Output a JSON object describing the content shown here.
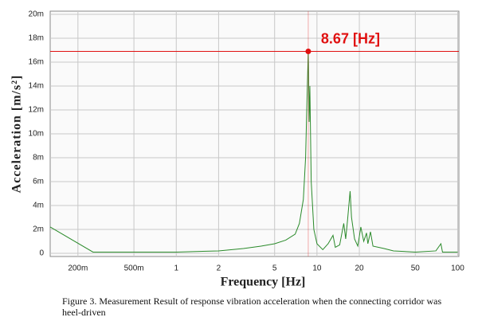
{
  "chart_data": {
    "type": "line",
    "xlabel": "Frequency [Hz]",
    "ylabel": "Acceleration [m/s²]",
    "caption": "Figure 3. Measurement Result of response vibration acceleration when the connecting corridor was heel-driven",
    "xscale": "log",
    "xlim": [
      0.127,
      102
    ],
    "xticks": [
      {
        "value": 0.2,
        "label": "200m"
      },
      {
        "value": 0.5,
        "label": "500m"
      },
      1,
      2,
      5,
      10,
      20,
      50,
      100
    ],
    "ylim": [
      -0.00027,
      0.02027
    ],
    "yticks": [
      0,
      {
        "value": 0.002,
        "label": "2m"
      },
      {
        "value": 0.004,
        "label": "4m"
      },
      {
        "value": 0.006,
        "label": "6m"
      },
      {
        "value": 0.008,
        "label": "8m"
      },
      {
        "value": 0.01,
        "label": "10m"
      },
      {
        "value": 0.012,
        "label": "12m"
      },
      {
        "value": 0.014,
        "label": "14m"
      },
      {
        "value": 0.016,
        "label": "16m"
      },
      {
        "value": 0.018,
        "label": "18m"
      },
      {
        "value": 0.02,
        "label": "20m"
      }
    ],
    "grid": true,
    "color": "#2a8a2a",
    "x": [
      0.127,
      0.256,
      1,
      2,
      3,
      4,
      5,
      6,
      7,
      7.5,
      8,
      8.3,
      8.5,
      8.67,
      8.8,
      8.9,
      9.1,
      9.5,
      10,
      11,
      12,
      13,
      13.5,
      14.5,
      15.5,
      16,
      16.5,
      17.2,
      17.6,
      18.5,
      19.5,
      20.5,
      21.5,
      22.5,
      23,
      24,
      25,
      30,
      35,
      50,
      70,
      76,
      78,
      100
    ],
    "values": [
      0.0022,
      0.0001,
      0.0001,
      0.0002,
      0.0004,
      0.0006,
      0.0008,
      0.0011,
      0.0016,
      0.0025,
      0.0045,
      0.008,
      0.013,
      0.0169,
      0.011,
      0.014,
      0.006,
      0.002,
      0.0008,
      0.0003,
      0.0008,
      0.0015,
      0.0005,
      0.0007,
      0.0025,
      0.0012,
      0.0028,
      0.0052,
      0.003,
      0.0012,
      0.0006,
      0.0022,
      0.001,
      0.0017,
      0.0008,
      0.0018,
      0.0006,
      0.0004,
      0.0002,
      0.0001,
      0.0002,
      0.0008,
      0.0001,
      0.0001
    ],
    "marker": {
      "x": 8.67,
      "y": 0.0169,
      "color": "#e01010"
    },
    "annotation": "8.67 [Hz]"
  }
}
